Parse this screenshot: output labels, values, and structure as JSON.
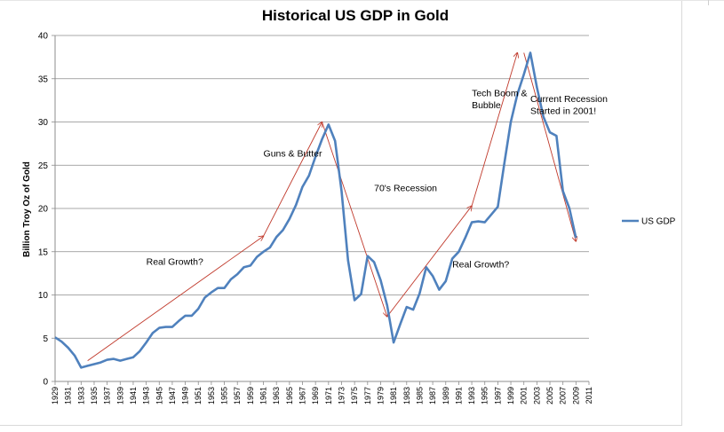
{
  "chart_data": {
    "type": "line",
    "title": "Historical US GDP in Gold",
    "xlabel": "",
    "ylabel": "Billion Troy Oz of Gold",
    "ylim": [
      0,
      40
    ],
    "yticks": [
      0,
      5,
      10,
      15,
      20,
      25,
      30,
      35,
      40
    ],
    "xlim": [
      1929,
      2011
    ],
    "xticks": [
      1929,
      1931,
      1933,
      1935,
      1937,
      1939,
      1941,
      1943,
      1945,
      1947,
      1949,
      1951,
      1953,
      1955,
      1957,
      1959,
      1961,
      1963,
      1965,
      1967,
      1969,
      1971,
      1973,
      1975,
      1977,
      1979,
      1981,
      1983,
      1985,
      1987,
      1989,
      1991,
      1993,
      1995,
      1997,
      1999,
      2001,
      2003,
      2005,
      2007,
      2009,
      2011
    ],
    "grid": "horizontal",
    "legend": "right",
    "series": [
      {
        "name": "US GDP",
        "color": "#4f81bd",
        "x": [
          1929,
          1930,
          1931,
          1932,
          1933,
          1934,
          1935,
          1936,
          1937,
          1938,
          1939,
          1940,
          1941,
          1942,
          1943,
          1944,
          1945,
          1946,
          1947,
          1948,
          1949,
          1950,
          1951,
          1952,
          1953,
          1954,
          1955,
          1956,
          1957,
          1958,
          1959,
          1960,
          1961,
          1962,
          1963,
          1964,
          1965,
          1966,
          1967,
          1968,
          1969,
          1970,
          1971,
          1972,
          1973,
          1974,
          1975,
          1976,
          1977,
          1978,
          1979,
          1980,
          1981,
          1982,
          1983,
          1984,
          1985,
          1986,
          1987,
          1988,
          1989,
          1990,
          1991,
          1992,
          1993,
          1994,
          1995,
          1996,
          1997,
          1998,
          1999,
          2000,
          2001,
          2002,
          2003,
          2004,
          2005,
          2006,
          2007,
          2008,
          2009
        ],
        "values": [
          5.1,
          4.6,
          3.9,
          3.0,
          1.6,
          1.8,
          2.0,
          2.2,
          2.5,
          2.6,
          2.4,
          2.6,
          2.8,
          3.5,
          4.5,
          5.6,
          6.2,
          6.3,
          6.3,
          7.0,
          7.6,
          7.6,
          8.4,
          9.7,
          10.3,
          10.8,
          10.8,
          11.8,
          12.4,
          13.2,
          13.4,
          14.4,
          15.0,
          15.5,
          16.7,
          17.5,
          18.8,
          20.4,
          22.5,
          23.8,
          26.0,
          28.0,
          29.7,
          27.8,
          22.0,
          14.0,
          9.4,
          10.1,
          14.5,
          13.8,
          11.7,
          8.8,
          4.5,
          6.6,
          8.6,
          8.3,
          10.2,
          13.2,
          12.2,
          10.6,
          11.6,
          14.2,
          15.0,
          16.6,
          18.4,
          18.5,
          18.4,
          19.3,
          20.2,
          25.2,
          30.0,
          33.2,
          35.5,
          38.0,
          34.0,
          30.6,
          28.8,
          28.4,
          22.0,
          20.0,
          16.6
        ]
      }
    ],
    "annotations": [
      {
        "text": "Real  Growth?",
        "x": 1943,
        "y": 13.5
      },
      {
        "text": "Guns & Butter",
        "x": 1961,
        "y": 26.0
      },
      {
        "text": "70's Recession",
        "x": 1978,
        "y": 22.0
      },
      {
        "text": "Real Growth?",
        "x": 1990,
        "y": 13.2
      },
      {
        "text": "Tech Boom &",
        "x": 1993,
        "y": 33.0
      },
      {
        "text": "Bubble",
        "x": 1993,
        "y": 31.6
      },
      {
        "text": "Current Recession",
        "x": 2002,
        "y": 32.3
      },
      {
        "text": "Started in 2001!",
        "x": 2002,
        "y": 30.9
      }
    ],
    "arrows": [
      {
        "from": [
          1934,
          2.4
        ],
        "to": [
          1961,
          16.8
        ]
      },
      {
        "from": [
          1961,
          16.8
        ],
        "to": [
          1970,
          30.0
        ]
      },
      {
        "from": [
          1970,
          30.0
        ],
        "to": [
          1980,
          7.5
        ]
      },
      {
        "from": [
          1980,
          7.5
        ],
        "to": [
          1993,
          20.3
        ]
      },
      {
        "from": [
          1993,
          20.3
        ],
        "to": [
          2000,
          38.0
        ]
      },
      {
        "from": [
          2001,
          38.0
        ],
        "to": [
          2009,
          16.2
        ]
      }
    ],
    "arrow_color": "#c0392b"
  }
}
